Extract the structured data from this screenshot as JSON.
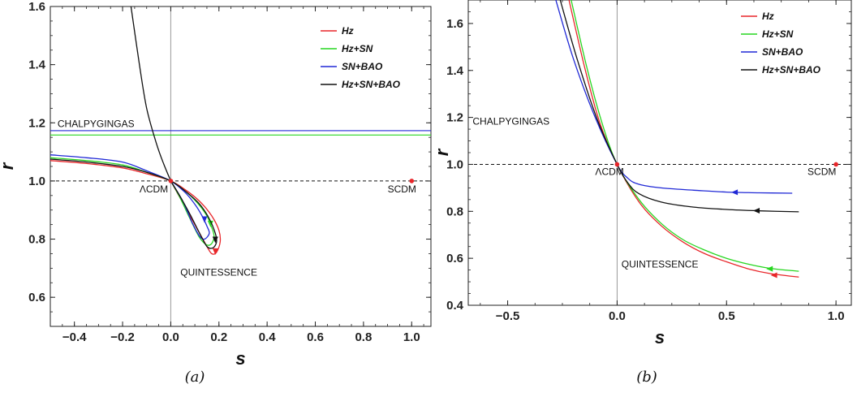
{
  "chart_data": [
    {
      "type": "line",
      "caption": "(a)",
      "xlabel": "s",
      "ylabel": "r",
      "xlim": [
        -0.5,
        1.08
      ],
      "ylim": [
        0.5,
        1.6
      ],
      "xticks": [
        -0.4,
        -0.2,
        0.0,
        0.2,
        0.4,
        0.6,
        0.8,
        1.0
      ],
      "xtick_labels": [
        "−0.4",
        "−0.2",
        "0.0",
        "0.2",
        "0.4",
        "0.6",
        "0.8",
        "1.0"
      ],
      "yticks": [
        0.6,
        0.8,
        1.0,
        1.2,
        1.4,
        1.6
      ],
      "ytick_labels": [
        "0.6",
        "0.8",
        "1.0",
        "1.2",
        "1.4",
        "1.6"
      ],
      "legend_position": "top-right",
      "points": [
        {
          "label": "ΛCDM",
          "s": 0.0,
          "r": 1.0
        },
        {
          "label": "SCDM",
          "s": 1.0,
          "r": 1.0
        }
      ],
      "annotations": [
        {
          "text": "CHALPYGINGAS",
          "s": -0.47,
          "r": 1.185
        },
        {
          "text": "ΛCDM",
          "s": -0.13,
          "r": 0.96
        },
        {
          "text": "SCDM",
          "s": 0.9,
          "r": 0.96
        },
        {
          "text": "QUINTESSENCE",
          "s": 0.04,
          "r": 0.675
        }
      ],
      "reference_lines": [
        {
          "r": 1.0,
          "style": "dashed"
        },
        {
          "s": 0.0,
          "style": "solid-gray"
        }
      ],
      "series": [
        {
          "name": "Hz",
          "color": "#e8262a",
          "hline": null,
          "trajectory": [
            [
              -0.5,
              1.07
            ],
            [
              -0.35,
              1.06
            ],
            [
              -0.2,
              1.045
            ],
            [
              -0.1,
              1.025
            ],
            [
              0.0,
              1.0
            ],
            [
              0.06,
              0.97
            ],
            [
              0.12,
              0.93
            ],
            [
              0.17,
              0.88
            ],
            [
              0.2,
              0.83
            ],
            [
              0.205,
              0.79
            ],
            [
              0.19,
              0.755
            ],
            [
              0.17,
              0.75
            ],
            [
              0.15,
              0.775
            ],
            [
              0.12,
              0.82
            ],
            [
              0.08,
              0.88
            ],
            [
              0.04,
              0.94
            ],
            [
              0.0,
              1.0
            ]
          ],
          "arrow_at": [
            0.185,
            0.76
          ]
        },
        {
          "name": "Hz+SN",
          "color": "#27d620",
          "hline": 1.158,
          "trajectory": [
            [
              -0.5,
              1.08
            ],
            [
              -0.35,
              1.07
            ],
            [
              -0.2,
              1.055
            ],
            [
              -0.1,
              1.03
            ],
            [
              0.0,
              1.0
            ],
            [
              0.06,
              0.965
            ],
            [
              0.11,
              0.925
            ],
            [
              0.15,
              0.88
            ],
            [
              0.17,
              0.84
            ],
            [
              0.18,
              0.81
            ],
            [
              0.17,
              0.785
            ],
            [
              0.15,
              0.78
            ],
            [
              0.12,
              0.805
            ],
            [
              0.08,
              0.87
            ],
            [
              0.04,
              0.94
            ],
            [
              0.0,
              1.0
            ]
          ],
          "arrow_at": [
            0.165,
            0.855
          ]
        },
        {
          "name": "SN+BAO",
          "color": "#2029d6",
          "hline": 1.173,
          "trajectory": [
            [
              -0.5,
              1.09
            ],
            [
              -0.35,
              1.08
            ],
            [
              -0.2,
              1.065
            ],
            [
              -0.1,
              1.035
            ],
            [
              0.0,
              1.0
            ],
            [
              0.06,
              0.96
            ],
            [
              0.1,
              0.92
            ],
            [
              0.13,
              0.88
            ],
            [
              0.15,
              0.845
            ],
            [
              0.16,
              0.82
            ],
            [
              0.14,
              0.8
            ],
            [
              0.12,
              0.81
            ],
            [
              0.09,
              0.855
            ],
            [
              0.05,
              0.93
            ],
            [
              0.0,
              1.0
            ]
          ],
          "arrow_at": [
            0.14,
            0.87
          ]
        },
        {
          "name": "Hz+SN+BAO",
          "color": "#111111",
          "hline": null,
          "trajectory_upper": [
            [
              -0.165,
              1.6
            ],
            [
              -0.13,
              1.4
            ],
            [
              -0.1,
              1.25
            ],
            [
              -0.06,
              1.13
            ],
            [
              -0.03,
              1.06
            ],
            [
              0.0,
              1.0
            ]
          ],
          "trajectory": [
            [
              -0.5,
              1.075
            ],
            [
              -0.35,
              1.065
            ],
            [
              -0.2,
              1.05
            ],
            [
              -0.1,
              1.03
            ],
            [
              0.0,
              1.0
            ],
            [
              0.06,
              0.965
            ],
            [
              0.12,
              0.92
            ],
            [
              0.16,
              0.87
            ],
            [
              0.185,
              0.82
            ],
            [
              0.19,
              0.79
            ],
            [
              0.175,
              0.77
            ],
            [
              0.15,
              0.775
            ],
            [
              0.12,
              0.82
            ],
            [
              0.08,
              0.885
            ],
            [
              0.04,
              0.945
            ],
            [
              0.0,
              1.0
            ]
          ],
          "arrow_at": [
            0.185,
            0.8
          ]
        }
      ]
    },
    {
      "type": "line",
      "caption": "(b)",
      "xlabel": "s",
      "ylabel": "r",
      "xlim": [
        -0.68,
        1.07
      ],
      "ylim": [
        0.4,
        1.7
      ],
      "xticks": [
        -0.5,
        0.0,
        0.5,
        1.0
      ],
      "xtick_labels": [
        "−0.5",
        "0.0",
        "0.5",
        "1.0"
      ],
      "yticks": [
        0.4,
        0.6,
        0.8,
        1.0,
        1.2,
        1.4,
        1.6
      ],
      "ytick_labels": [
        "0.4",
        "0.6",
        "0.8",
        "1.0",
        "1.2",
        "1.4",
        "1.6"
      ],
      "legend_position": "top-right",
      "points": [
        {
          "label": "ΛCDM",
          "s": 0.0,
          "r": 1.0
        },
        {
          "label": "SCDM",
          "s": 1.0,
          "r": 1.0
        }
      ],
      "annotations": [
        {
          "text": "CHALPYGINGAS",
          "s": -0.66,
          "r": 1.17
        },
        {
          "text": "ΛCDM",
          "s": -0.1,
          "r": 0.955
        },
        {
          "text": "SCDM",
          "s": 0.87,
          "r": 0.955
        },
        {
          "text": "QUINTESSENCE",
          "s": 0.02,
          "r": 0.56
        }
      ],
      "reference_lines": [
        {
          "r": 1.0,
          "style": "dashed"
        },
        {
          "s": 0.0,
          "style": "solid-gray"
        }
      ],
      "series": [
        {
          "name": "Hz",
          "color": "#e8262a",
          "trajectory": [
            [
              -0.22,
              1.7
            ],
            [
              -0.15,
              1.42
            ],
            [
              -0.08,
              1.18
            ],
            [
              0.0,
              1.0
            ],
            [
              0.1,
              0.84
            ],
            [
              0.2,
              0.74
            ],
            [
              0.3,
              0.67
            ],
            [
              0.4,
              0.62
            ],
            [
              0.5,
              0.585
            ],
            [
              0.6,
              0.555
            ],
            [
              0.7,
              0.535
            ],
            [
              0.83,
              0.52
            ]
          ],
          "arrow_at": [
            0.72,
            0.528
          ]
        },
        {
          "name": "Hz+SN",
          "color": "#27d620",
          "trajectory": [
            [
              -0.21,
              1.7
            ],
            [
              -0.14,
              1.42
            ],
            [
              -0.07,
              1.18
            ],
            [
              0.0,
              1.0
            ],
            [
              0.1,
              0.85
            ],
            [
              0.2,
              0.75
            ],
            [
              0.3,
              0.68
            ],
            [
              0.4,
              0.635
            ],
            [
              0.5,
              0.6
            ],
            [
              0.6,
              0.575
            ],
            [
              0.7,
              0.557
            ],
            [
              0.83,
              0.545
            ]
          ],
          "arrow_at": [
            0.7,
            0.555
          ]
        },
        {
          "name": "SN+BAO",
          "color": "#2029d6",
          "trajectory": [
            [
              -0.28,
              1.7
            ],
            [
              -0.2,
              1.45
            ],
            [
              -0.1,
              1.2
            ],
            [
              0.0,
              1.0
            ],
            [
              0.05,
              0.94
            ],
            [
              0.1,
              0.915
            ],
            [
              0.2,
              0.9
            ],
            [
              0.35,
              0.89
            ],
            [
              0.5,
              0.882
            ],
            [
              0.65,
              0.879
            ],
            [
              0.8,
              0.877
            ]
          ],
          "arrow_at": [
            0.54,
            0.881
          ]
        },
        {
          "name": "Hz+SN+BAO",
          "color": "#111111",
          "trajectory": [
            [
              -0.26,
              1.7
            ],
            [
              -0.18,
              1.44
            ],
            [
              -0.09,
              1.19
            ],
            [
              0.0,
              1.0
            ],
            [
              0.05,
              0.92
            ],
            [
              0.1,
              0.875
            ],
            [
              0.2,
              0.84
            ],
            [
              0.35,
              0.818
            ],
            [
              0.5,
              0.808
            ],
            [
              0.65,
              0.802
            ],
            [
              0.83,
              0.798
            ]
          ],
          "arrow_at": [
            0.64,
            0.803
          ]
        }
      ]
    }
  ]
}
